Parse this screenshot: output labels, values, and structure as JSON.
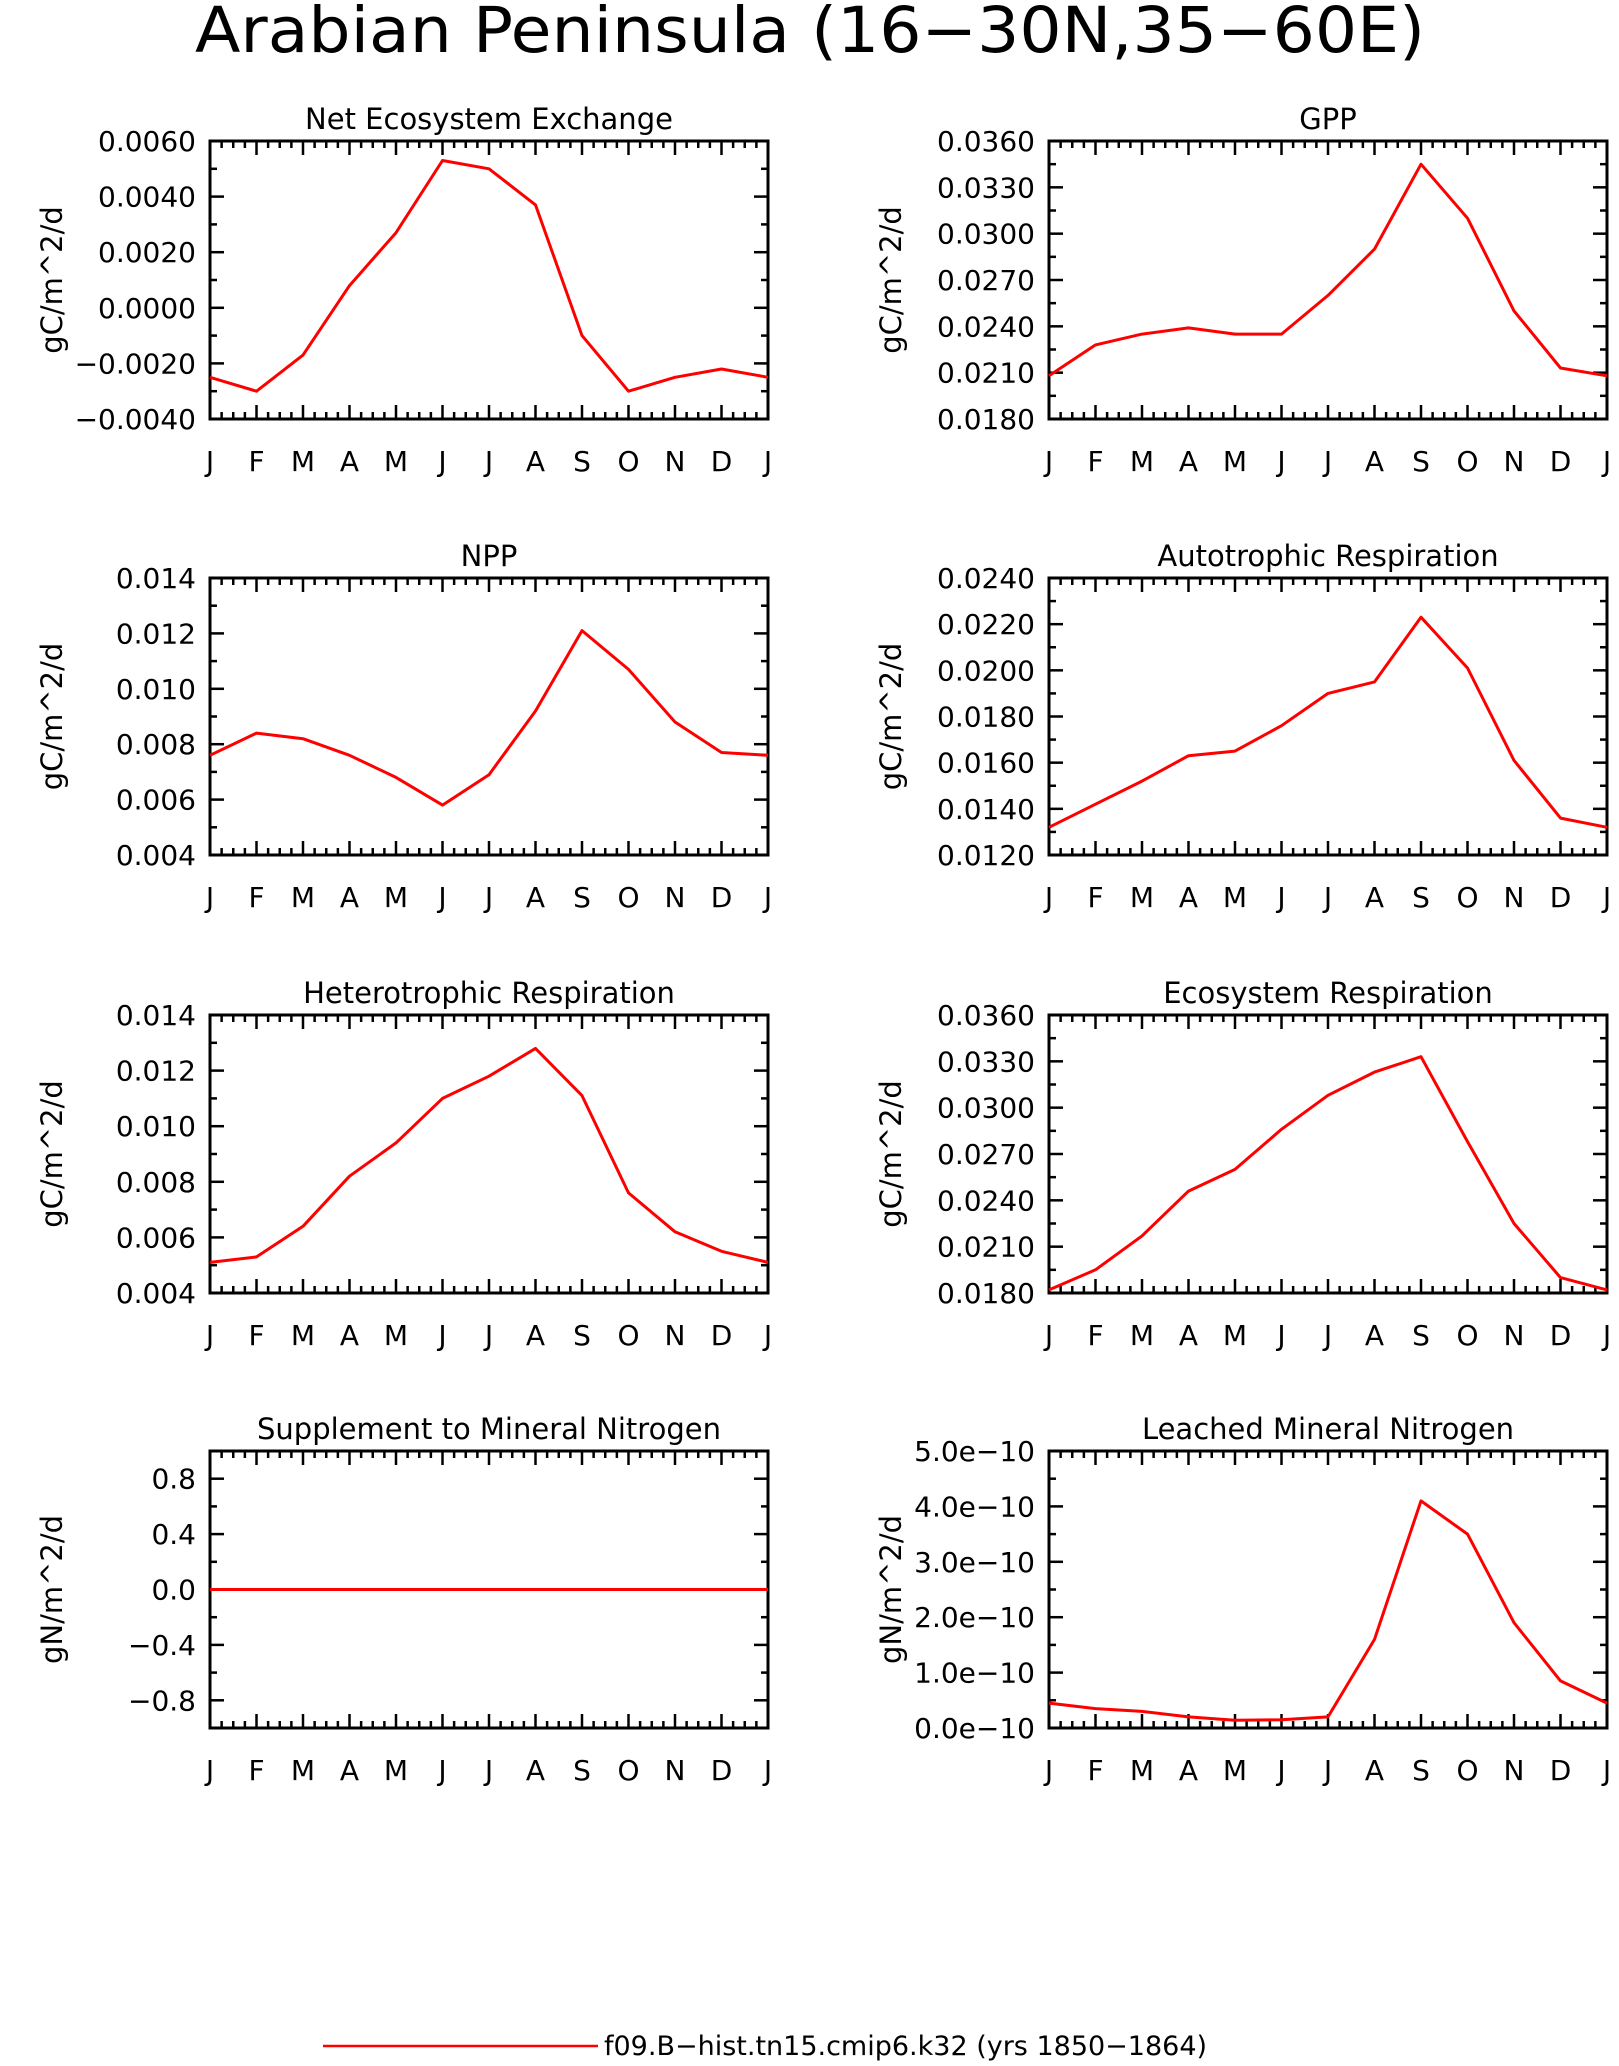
{
  "figure": {
    "title": "Arabian Peninsula (16−30N,35−60E)",
    "series_color": "#ff0000",
    "legend": {
      "label": "f09.B−hist.tn15.cmip6.k32 (yrs 1850−1864)",
      "color": "#ff0000"
    }
  },
  "chart_data": [
    {
      "type": "line",
      "title": "Net Ecosystem Exchange",
      "ylabel": "gC/m^2/d",
      "x": [
        "J",
        "F",
        "M",
        "A",
        "M",
        "J",
        "J",
        "A",
        "S",
        "O",
        "N",
        "D",
        "J"
      ],
      "ylim": [
        -0.004,
        0.006
      ],
      "yticks": [
        -0.004,
        -0.002,
        0.0,
        0.002,
        0.004,
        0.006
      ],
      "ytick_labels": [
        "−0.0040",
        "−0.0020",
        "0.0000",
        "0.0020",
        "0.0040",
        "0.0060"
      ],
      "series": [
        {
          "values": [
            -0.0025,
            -0.003,
            -0.0017,
            0.0008,
            0.0027,
            0.0053,
            0.005,
            0.0037,
            -0.001,
            -0.003,
            -0.0025,
            -0.0022,
            -0.0025
          ]
        }
      ]
    },
    {
      "type": "line",
      "title": "GPP",
      "ylabel": "gC/m^2/d",
      "x": [
        "J",
        "F",
        "M",
        "A",
        "M",
        "J",
        "J",
        "A",
        "S",
        "O",
        "N",
        "D",
        "J"
      ],
      "ylim": [
        0.018,
        0.036
      ],
      "yticks": [
        0.018,
        0.021,
        0.024,
        0.027,
        0.03,
        0.033,
        0.036
      ],
      "ytick_labels": [
        "0.0180",
        "0.0210",
        "0.0240",
        "0.0270",
        "0.0300",
        "0.0330",
        "0.0360"
      ],
      "series": [
        {
          "values": [
            0.0208,
            0.0228,
            0.0235,
            0.0239,
            0.0235,
            0.0235,
            0.026,
            0.029,
            0.0345,
            0.031,
            0.025,
            0.0213,
            0.0208
          ]
        }
      ]
    },
    {
      "type": "line",
      "title": "NPP",
      "ylabel": "gC/m^2/d",
      "x": [
        "J",
        "F",
        "M",
        "A",
        "M",
        "J",
        "J",
        "A",
        "S",
        "O",
        "N",
        "D",
        "J"
      ],
      "ylim": [
        0.004,
        0.014
      ],
      "yticks": [
        0.004,
        0.006,
        0.008,
        0.01,
        0.012,
        0.014
      ],
      "ytick_labels": [
        "0.004",
        "0.006",
        "0.008",
        "0.010",
        "0.012",
        "0.014"
      ],
      "series": [
        {
          "values": [
            0.0076,
            0.0084,
            0.0082,
            0.0076,
            0.0068,
            0.0058,
            0.0069,
            0.0092,
            0.0121,
            0.0107,
            0.0088,
            0.0077,
            0.0076
          ]
        }
      ]
    },
    {
      "type": "line",
      "title": "Autotrophic Respiration",
      "ylabel": "gC/m^2/d",
      "x": [
        "J",
        "F",
        "M",
        "A",
        "M",
        "J",
        "J",
        "A",
        "S",
        "O",
        "N",
        "D",
        "J"
      ],
      "ylim": [
        0.012,
        0.024
      ],
      "yticks": [
        0.012,
        0.014,
        0.016,
        0.018,
        0.02,
        0.022,
        0.024
      ],
      "ytick_labels": [
        "0.0120",
        "0.0140",
        "0.0160",
        "0.0180",
        "0.0200",
        "0.0220",
        "0.0240"
      ],
      "series": [
        {
          "values": [
            0.0132,
            0.0142,
            0.0152,
            0.0163,
            0.0165,
            0.0176,
            0.019,
            0.0195,
            0.0223,
            0.0201,
            0.0161,
            0.0136,
            0.0132
          ]
        }
      ]
    },
    {
      "type": "line",
      "title": "Heterotrophic Respiration",
      "ylabel": "gC/m^2/d",
      "x": [
        "J",
        "F",
        "M",
        "A",
        "M",
        "J",
        "J",
        "A",
        "S",
        "O",
        "N",
        "D",
        "J"
      ],
      "ylim": [
        0.004,
        0.014
      ],
      "yticks": [
        0.004,
        0.006,
        0.008,
        0.01,
        0.012,
        0.014
      ],
      "ytick_labels": [
        "0.004",
        "0.006",
        "0.008",
        "0.010",
        "0.012",
        "0.014"
      ],
      "series": [
        {
          "values": [
            0.0051,
            0.0053,
            0.0064,
            0.0082,
            0.0094,
            0.011,
            0.0118,
            0.0128,
            0.0111,
            0.0076,
            0.0062,
            0.0055,
            0.0051
          ]
        }
      ]
    },
    {
      "type": "line",
      "title": "Ecosystem Respiration",
      "ylabel": "gC/m^2/d",
      "x": [
        "J",
        "F",
        "M",
        "A",
        "M",
        "J",
        "J",
        "A",
        "S",
        "O",
        "N",
        "D",
        "J"
      ],
      "ylim": [
        0.018,
        0.036
      ],
      "yticks": [
        0.018,
        0.021,
        0.024,
        0.027,
        0.03,
        0.033,
        0.036
      ],
      "ytick_labels": [
        "0.0180",
        "0.0210",
        "0.0240",
        "0.0270",
        "0.0300",
        "0.0330",
        "0.0360"
      ],
      "series": [
        {
          "values": [
            0.0182,
            0.0195,
            0.0217,
            0.0246,
            0.026,
            0.0286,
            0.0308,
            0.0323,
            0.0333,
            0.0278,
            0.0225,
            0.019,
            0.0182
          ]
        }
      ]
    },
    {
      "type": "line",
      "title": "Supplement to Mineral Nitrogen",
      "ylabel": "gN/m^2/d",
      "x": [
        "J",
        "F",
        "M",
        "A",
        "M",
        "J",
        "J",
        "A",
        "S",
        "O",
        "N",
        "D",
        "J"
      ],
      "ylim": [
        -1.0,
        1.0
      ],
      "yticks": [
        -0.8,
        -0.4,
        0.0,
        0.4,
        0.8
      ],
      "ytick_labels": [
        "−0.8",
        "−0.4",
        "0.0",
        "0.4",
        "0.8"
      ],
      "minor_yticks": [
        -1.0,
        -0.6,
        -0.2,
        0.2,
        0.6,
        1.0
      ],
      "series": [
        {
          "values": [
            0,
            0,
            0,
            0,
            0,
            0,
            0,
            0,
            0,
            0,
            0,
            0,
            0
          ]
        }
      ]
    },
    {
      "type": "line",
      "title": "Leached Mineral Nitrogen",
      "ylabel": "gN/m^2/d",
      "x": [
        "J",
        "F",
        "M",
        "A",
        "M",
        "J",
        "J",
        "A",
        "S",
        "O",
        "N",
        "D",
        "J"
      ],
      "ylim": [
        0.0,
        5e-10
      ],
      "yticks": [
        0.0,
        1e-10,
        2e-10,
        3e-10,
        4e-10,
        5e-10
      ],
      "ytick_labels": [
        "0.0e−10",
        "1.0e−10",
        "2.0e−10",
        "3.0e−10",
        "4.0e−10",
        "5.0e−10"
      ],
      "series": [
        {
          "values": [
            4.5e-11,
            3.5e-11,
            3e-11,
            2e-11,
            1.4e-11,
            1.5e-11,
            2e-11,
            1.6e-10,
            4.1e-10,
            3.5e-10,
            1.9e-10,
            8.5e-11,
            4.5e-11
          ]
        }
      ]
    }
  ]
}
